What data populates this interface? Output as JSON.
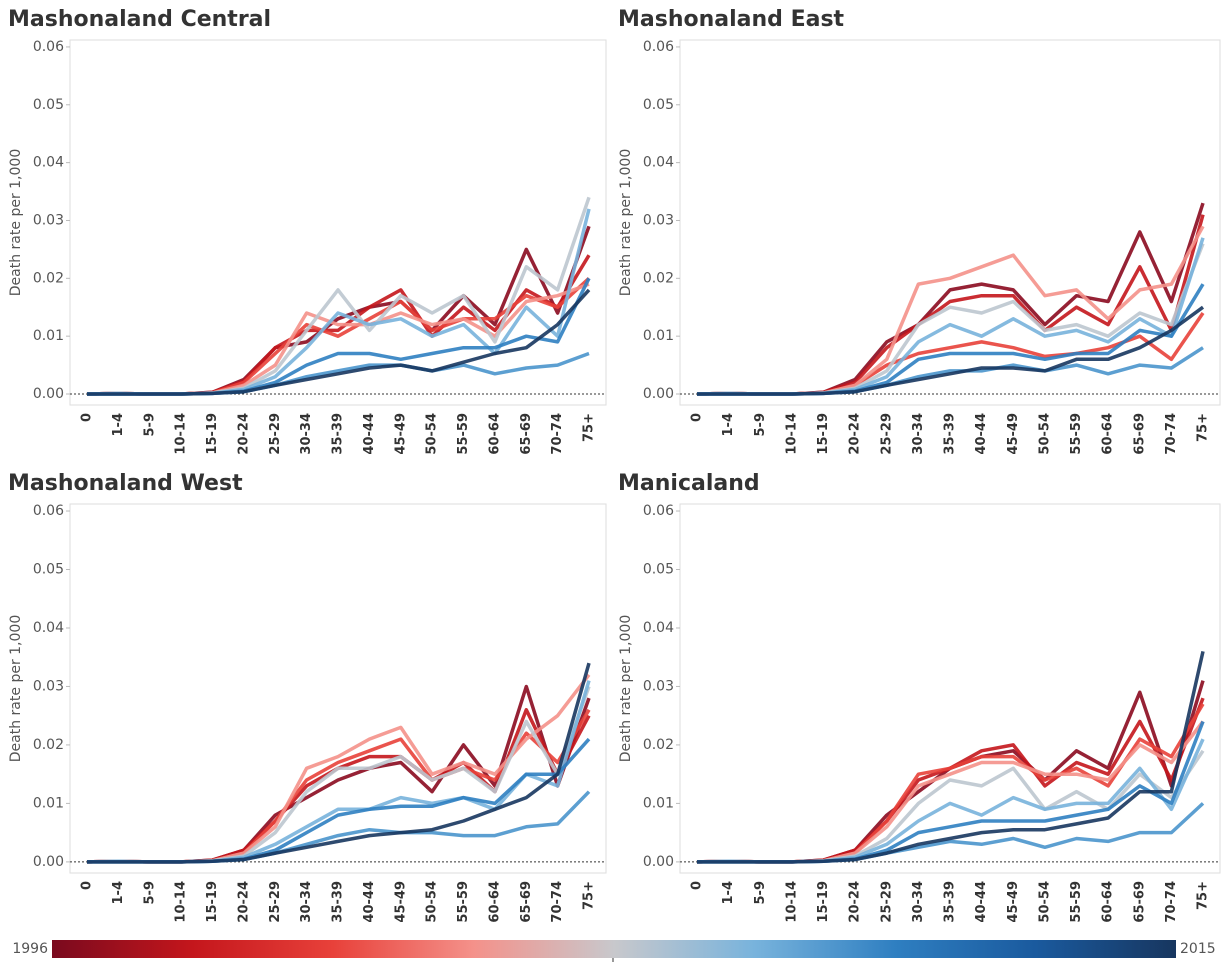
{
  "chart_data": [
    {
      "type": "line",
      "title": "Mashonaland Central",
      "y_label": "Death rate per 1,000",
      "categories": [
        "0",
        "1-4",
        "5-9",
        "10-14",
        "15-19",
        "20-24",
        "25-29",
        "30-34",
        "35-39",
        "40-44",
        "45-49",
        "50-54",
        "55-59",
        "60-64",
        "65-69",
        "70-74",
        "75+"
      ],
      "ylim": [
        -0.0019,
        0.0612
      ],
      "yticks": [
        {
          "value": 0,
          "label": "0.00"
        },
        0.01,
        0.02,
        0.03,
        0.04,
        0.05,
        0.06
      ],
      "series": [
        {
          "color": "#8b0a1f",
          "values": [
            0,
            0.0001,
            0,
            0,
            0.0003,
            0.0025,
            0.008,
            0.009,
            0.013,
            0.015,
            0.016,
            0.011,
            0.017,
            0.012,
            0.025,
            0.014,
            0.029
          ]
        },
        {
          "color": "#c4161c",
          "values": [
            0,
            0.0001,
            0,
            0,
            0.0003,
            0.0022,
            0.008,
            0.011,
            0.011,
            0.015,
            0.018,
            0.01,
            0.015,
            0.011,
            0.018,
            0.015,
            0.024
          ]
        },
        {
          "color": "#e8413a",
          "values": [
            0,
            0.0001,
            0,
            0,
            0.0002,
            0.002,
            0.007,
            0.012,
            0.01,
            0.013,
            0.016,
            0.011,
            0.013,
            0.013,
            0.017,
            0.015,
            0.02
          ]
        },
        {
          "color": "#f4918a",
          "values": [
            0,
            0.0001,
            0,
            0,
            0.0002,
            0.0015,
            0.005,
            0.014,
            0.012,
            0.012,
            0.014,
            0.012,
            0.013,
            0.01,
            0.016,
            0.017,
            0.019
          ]
        },
        {
          "color": "#bcc6cf",
          "values": [
            0,
            0.0001,
            0,
            0,
            0.0002,
            0.001,
            0.004,
            0.011,
            0.018,
            0.011,
            0.017,
            0.014,
            0.017,
            0.009,
            0.022,
            0.018,
            0.034
          ]
        },
        {
          "color": "#78b3dc",
          "values": [
            0,
            0.0001,
            0,
            0,
            0.0001,
            0.0008,
            0.003,
            0.008,
            0.014,
            0.012,
            0.013,
            0.01,
            0.012,
            0.007,
            0.015,
            0.01,
            0.032
          ]
        },
        {
          "color": "#2f7fc1",
          "values": [
            0,
            0,
            0,
            0,
            0.0001,
            0.0005,
            0.002,
            0.005,
            0.007,
            0.007,
            0.006,
            0.007,
            0.008,
            0.008,
            0.01,
            0.009,
            0.02
          ]
        },
        {
          "color": "#4a95cc",
          "values": [
            0,
            0,
            0,
            0,
            0.0001,
            0.0004,
            0.0015,
            0.003,
            0.004,
            0.005,
            0.005,
            0.004,
            0.005,
            0.0035,
            0.0045,
            0.005,
            0.007
          ]
        },
        {
          "color": "#17365f",
          "values": [
            0,
            0,
            0,
            0,
            0.0001,
            0.0004,
            0.0015,
            0.0025,
            0.0035,
            0.0045,
            0.005,
            0.004,
            0.0055,
            0.007,
            0.008,
            0.012,
            0.018
          ]
        }
      ]
    },
    {
      "type": "line",
      "title": "Mashonaland East",
      "y_label": "Death rate per 1,000",
      "categories": [
        "0",
        "1-4",
        "5-9",
        "10-14",
        "15-19",
        "20-24",
        "25-29",
        "30-34",
        "35-39",
        "40-44",
        "45-49",
        "50-54",
        "55-59",
        "60-64",
        "65-69",
        "70-74",
        "75+"
      ],
      "ylim": [
        -0.0019,
        0.0612
      ],
      "yticks": [
        {
          "value": 0,
          "label": "0.00"
        },
        0.01,
        0.02,
        0.03,
        0.04,
        0.05,
        0.06
      ],
      "series": [
        {
          "color": "#8b0a1f",
          "values": [
            0,
            0.0001,
            0,
            0,
            0.0003,
            0.0025,
            0.009,
            0.012,
            0.018,
            0.019,
            0.018,
            0.012,
            0.017,
            0.016,
            0.028,
            0.016,
            0.033
          ]
        },
        {
          "color": "#c4161c",
          "values": [
            0,
            0.0001,
            0,
            0,
            0.0003,
            0.002,
            0.008,
            0.012,
            0.016,
            0.017,
            0.017,
            0.011,
            0.015,
            0.012,
            0.022,
            0.011,
            0.031
          ]
        },
        {
          "color": "#e8413a",
          "values": [
            0,
            0.0001,
            0,
            0,
            0.0002,
            0.0015,
            0.005,
            0.007,
            0.008,
            0.009,
            0.008,
            0.0065,
            0.007,
            0.008,
            0.01,
            0.006,
            0.014
          ]
        },
        {
          "color": "#f4918a",
          "values": [
            0,
            0.0001,
            0,
            0,
            0.0002,
            0.0015,
            0.006,
            0.019,
            0.02,
            0.022,
            0.024,
            0.017,
            0.018,
            0.013,
            0.018,
            0.019,
            0.029
          ]
        },
        {
          "color": "#bcc6cf",
          "values": [
            0,
            0.0001,
            0,
            0,
            0.0002,
            0.001,
            0.004,
            0.012,
            0.015,
            0.014,
            0.016,
            0.011,
            0.012,
            0.01,
            0.014,
            0.012,
            0.026
          ]
        },
        {
          "color": "#78b3dc",
          "values": [
            0,
            0.0001,
            0,
            0,
            0.0001,
            0.0008,
            0.003,
            0.009,
            0.012,
            0.01,
            0.013,
            0.01,
            0.011,
            0.009,
            0.013,
            0.01,
            0.027
          ]
        },
        {
          "color": "#2f7fc1",
          "values": [
            0,
            0,
            0,
            0,
            0.0001,
            0.0005,
            0.002,
            0.006,
            0.007,
            0.007,
            0.007,
            0.006,
            0.007,
            0.007,
            0.011,
            0.01,
            0.019
          ]
        },
        {
          "color": "#4a95cc",
          "values": [
            0,
            0,
            0,
            0,
            0.0001,
            0.0004,
            0.0015,
            0.003,
            0.004,
            0.004,
            0.005,
            0.004,
            0.005,
            0.0035,
            0.005,
            0.0045,
            0.008
          ]
        },
        {
          "color": "#17365f",
          "values": [
            0,
            0,
            0,
            0,
            0.0001,
            0.0004,
            0.0015,
            0.0025,
            0.0035,
            0.0045,
            0.0045,
            0.004,
            0.006,
            0.006,
            0.008,
            0.011,
            0.015
          ]
        }
      ]
    },
    {
      "type": "line",
      "title": "Mashonaland West",
      "y_label": "Death rate per 1,000",
      "categories": [
        "0",
        "1-4",
        "5-9",
        "10-14",
        "15-19",
        "20-24",
        "25-29",
        "30-34",
        "35-39",
        "40-44",
        "45-49",
        "50-54",
        "55-59",
        "60-64",
        "65-69",
        "70-74",
        "75+"
      ],
      "ylim": [
        -0.0019,
        0.0612
      ],
      "yticks": [
        {
          "value": 0,
          "label": "0.00"
        },
        0.01,
        0.02,
        0.03,
        0.04,
        0.05,
        0.06
      ],
      "series": [
        {
          "color": "#8b0a1f",
          "values": [
            0,
            0.0001,
            0,
            0,
            0.0003,
            0.002,
            0.008,
            0.011,
            0.014,
            0.016,
            0.017,
            0.012,
            0.02,
            0.013,
            0.03,
            0.013,
            0.028
          ]
        },
        {
          "color": "#c4161c",
          "values": [
            0,
            0.0001,
            0,
            0,
            0.0003,
            0.002,
            0.007,
            0.013,
            0.016,
            0.018,
            0.018,
            0.014,
            0.017,
            0.012,
            0.026,
            0.015,
            0.025
          ]
        },
        {
          "color": "#e8413a",
          "values": [
            0,
            0.0001,
            0,
            0,
            0.0002,
            0.0015,
            0.007,
            0.014,
            0.017,
            0.019,
            0.021,
            0.014,
            0.016,
            0.014,
            0.022,
            0.017,
            0.026
          ]
        },
        {
          "color": "#f4918a",
          "values": [
            0,
            0.0001,
            0,
            0,
            0.0002,
            0.0015,
            0.006,
            0.016,
            0.018,
            0.021,
            0.023,
            0.015,
            0.017,
            0.015,
            0.021,
            0.025,
            0.032
          ]
        },
        {
          "color": "#bcc6cf",
          "values": [
            0,
            0.0001,
            0,
            0,
            0.0002,
            0.001,
            0.005,
            0.012,
            0.016,
            0.016,
            0.018,
            0.014,
            0.016,
            0.012,
            0.024,
            0.015,
            0.03
          ]
        },
        {
          "color": "#78b3dc",
          "values": [
            0,
            0.0001,
            0,
            0,
            0.0001,
            0.0008,
            0.003,
            0.006,
            0.009,
            0.009,
            0.011,
            0.01,
            0.011,
            0.009,
            0.015,
            0.013,
            0.031
          ]
        },
        {
          "color": "#2f7fc1",
          "values": [
            0,
            0,
            0,
            0,
            0.0001,
            0.0005,
            0.002,
            0.005,
            0.008,
            0.009,
            0.0095,
            0.0095,
            0.011,
            0.01,
            0.015,
            0.015,
            0.021
          ]
        },
        {
          "color": "#4a95cc",
          "values": [
            0,
            0,
            0,
            0,
            0.0001,
            0.0004,
            0.0015,
            0.003,
            0.0045,
            0.0055,
            0.005,
            0.005,
            0.0045,
            0.0045,
            0.006,
            0.0065,
            0.012
          ]
        },
        {
          "color": "#17365f",
          "values": [
            0,
            0,
            0,
            0,
            0.0001,
            0.0004,
            0.0015,
            0.0025,
            0.0035,
            0.0045,
            0.005,
            0.0055,
            0.007,
            0.009,
            0.011,
            0.015,
            0.034
          ]
        }
      ]
    },
    {
      "type": "line",
      "title": "Manicaland",
      "y_label": "Death rate per 1,000",
      "categories": [
        "0",
        "1-4",
        "5-9",
        "10-14",
        "15-19",
        "20-24",
        "25-29",
        "30-34",
        "35-39",
        "40-44",
        "45-49",
        "50-54",
        "55-59",
        "60-64",
        "65-69",
        "70-74",
        "75+"
      ],
      "ylim": [
        -0.0019,
        0.0612
      ],
      "yticks": [
        {
          "value": 0,
          "label": "0.00"
        },
        0.01,
        0.02,
        0.03,
        0.04,
        0.05,
        0.06
      ],
      "series": [
        {
          "color": "#8b0a1f",
          "values": [
            0,
            0.0001,
            0,
            0,
            0.0003,
            0.002,
            0.008,
            0.012,
            0.016,
            0.018,
            0.019,
            0.014,
            0.019,
            0.016,
            0.029,
            0.013,
            0.031
          ]
        },
        {
          "color": "#c4161c",
          "values": [
            0,
            0.0001,
            0,
            0,
            0.0003,
            0.002,
            0.007,
            0.014,
            0.016,
            0.019,
            0.02,
            0.013,
            0.017,
            0.015,
            0.024,
            0.014,
            0.028
          ]
        },
        {
          "color": "#e8413a",
          "values": [
            0,
            0.0001,
            0,
            0,
            0.0002,
            0.0015,
            0.007,
            0.015,
            0.016,
            0.018,
            0.018,
            0.014,
            0.016,
            0.013,
            0.021,
            0.018,
            0.027
          ]
        },
        {
          "color": "#f4918a",
          "values": [
            0,
            0.0001,
            0,
            0,
            0.0002,
            0.0015,
            0.006,
            0.013,
            0.015,
            0.017,
            0.017,
            0.015,
            0.015,
            0.014,
            0.02,
            0.017,
            0.024
          ]
        },
        {
          "color": "#bcc6cf",
          "values": [
            0,
            0.0001,
            0,
            0,
            0.0002,
            0.001,
            0.004,
            0.01,
            0.014,
            0.013,
            0.016,
            0.009,
            0.012,
            0.009,
            0.015,
            0.011,
            0.019
          ]
        },
        {
          "color": "#78b3dc",
          "values": [
            0,
            0.0001,
            0,
            0,
            0.0001,
            0.0008,
            0.003,
            0.007,
            0.01,
            0.008,
            0.011,
            0.009,
            0.01,
            0.01,
            0.016,
            0.009,
            0.021
          ]
        },
        {
          "color": "#2f7fc1",
          "values": [
            0,
            0,
            0,
            0,
            0.0001,
            0.0005,
            0.002,
            0.005,
            0.006,
            0.007,
            0.007,
            0.007,
            0.008,
            0.009,
            0.013,
            0.01,
            0.024
          ]
        },
        {
          "color": "#4a95cc",
          "values": [
            0,
            0,
            0,
            0,
            0.0001,
            0.0004,
            0.0015,
            0.0025,
            0.0035,
            0.003,
            0.004,
            0.0025,
            0.004,
            0.0035,
            0.005,
            0.005,
            0.01
          ]
        },
        {
          "color": "#17365f",
          "values": [
            0,
            0,
            0,
            0,
            0.0001,
            0.0004,
            0.0015,
            0.003,
            0.004,
            0.005,
            0.0055,
            0.0055,
            0.0065,
            0.0075,
            0.012,
            0.012,
            0.036
          ]
        }
      ]
    }
  ],
  "color_legend": {
    "min_label": "1996",
    "max_label": "2015",
    "colors": [
      "#7a0a1e",
      "#c4161c",
      "#e8413a",
      "#f4918a",
      "#c8c8cc",
      "#78b3dc",
      "#2f7fc1",
      "#1a5a9e",
      "#17365f"
    ]
  }
}
